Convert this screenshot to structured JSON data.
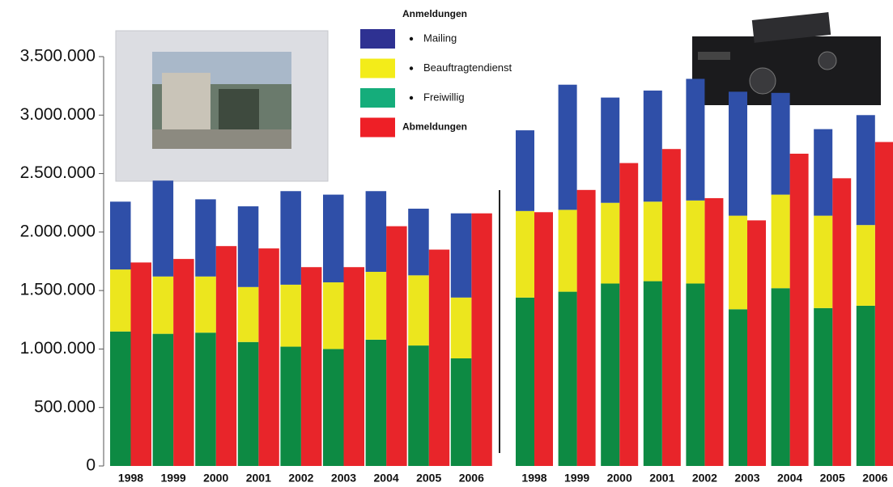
{
  "chart_data": [
    {
      "type": "bar",
      "legend_title": "Anmeldungen",
      "categories": [
        "1998",
        "1999",
        "2000",
        "2001",
        "2002",
        "2003",
        "2004",
        "2005",
        "2006"
      ],
      "ylim": [
        0,
        3500000
      ],
      "yticks": [
        0,
        {
          "value": 500000,
          "label": "500.000"
        },
        {
          "value": 1000000,
          "label": "1.000.000"
        },
        {
          "value": 1500000,
          "label": "1.500.000"
        },
        {
          "value": 2000000,
          "label": "2.000.000"
        },
        {
          "value": 2500000,
          "label": "2.500.000"
        },
        {
          "value": 3000000,
          "label": "3.000.000"
        },
        {
          "value": 3500000,
          "label": "3.500.000"
        }
      ],
      "series": [
        {
          "name": "Mailing",
          "color": "#2f4fa8",
          "legend_color": "#2e3192",
          "stack": 0,
          "values": [
            580000,
            820000,
            660000,
            690000,
            800000,
            750000,
            690000,
            570000,
            720000
          ]
        },
        {
          "name": "Beauftragtendienst",
          "color": "#ece61e",
          "legend_color": "#f3ec19",
          "stack": 0,
          "values": [
            530000,
            490000,
            480000,
            470000,
            530000,
            570000,
            580000,
            600000,
            520000
          ]
        },
        {
          "name": "Freiwillig",
          "color": "#0d8a43",
          "legend_color": "#15ad7b",
          "stack": 0,
          "values": [
            1150000,
            1130000,
            1140000,
            1060000,
            1020000,
            1000000,
            1080000,
            1030000,
            920000
          ]
        },
        {
          "name": "Abmeldungen",
          "color": "#e8252a",
          "legend_color": "#ee1f26",
          "stack": 1,
          "values": [
            1740000,
            1770000,
            1880000,
            1860000,
            1700000,
            1700000,
            2050000,
            1850000,
            2160000
          ]
        }
      ]
    },
    {
      "type": "bar",
      "categories": [
        "1998",
        "1999",
        "2000",
        "2001",
        "2002",
        "2003",
        "2004",
        "2005",
        "2006"
      ],
      "ylim": [
        0,
        3500000
      ],
      "series": [
        {
          "color": "#2f4fa8",
          "stack": 0,
          "values": [
            690000,
            1070000,
            900000,
            950000,
            1040000,
            1060000,
            870000,
            740000,
            940000
          ]
        },
        {
          "color": "#ece61e",
          "stack": 0,
          "values": [
            740000,
            700000,
            690000,
            680000,
            710000,
            800000,
            800000,
            790000,
            690000
          ]
        },
        {
          "color": "#0d8a43",
          "stack": 0,
          "values": [
            1440000,
            1490000,
            1560000,
            1580000,
            1560000,
            1340000,
            1520000,
            1350000,
            1370000
          ]
        },
        {
          "color": "#e8252a",
          "stack": 1,
          "values": [
            2170000,
            2360000,
            2590000,
            2710000,
            2290000,
            2100000,
            2670000,
            2460000,
            2770000
          ]
        }
      ]
    }
  ]
}
